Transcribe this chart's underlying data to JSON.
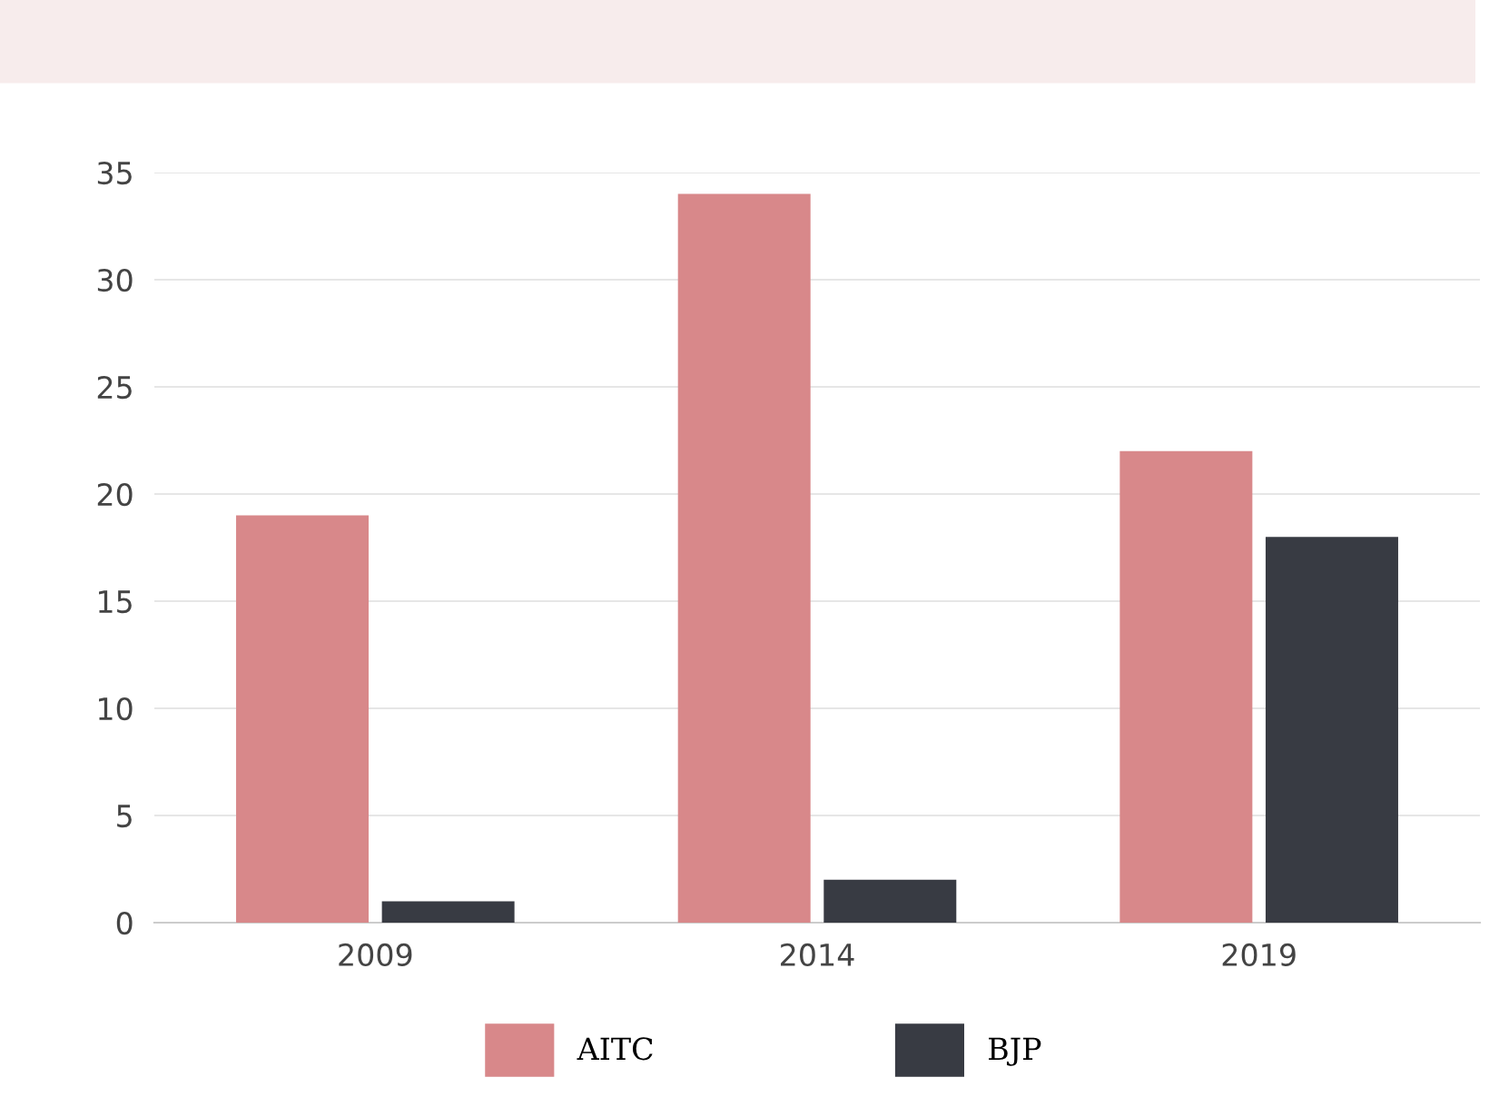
{
  "chart_data": {
    "type": "bar",
    "categories": [
      "2009",
      "2014",
      "2019"
    ],
    "series": [
      {
        "name": "AITC",
        "color": "#d8888a",
        "values": [
          19,
          34,
          22
        ]
      },
      {
        "name": "BJP",
        "color": "#383b43",
        "values": [
          1,
          2,
          18
        ]
      }
    ],
    "ylim": [
      0,
      35
    ],
    "yticks": [
      0,
      5,
      10,
      15,
      20,
      25,
      30,
      35
    ],
    "grid": "y",
    "legend": "bottom"
  }
}
